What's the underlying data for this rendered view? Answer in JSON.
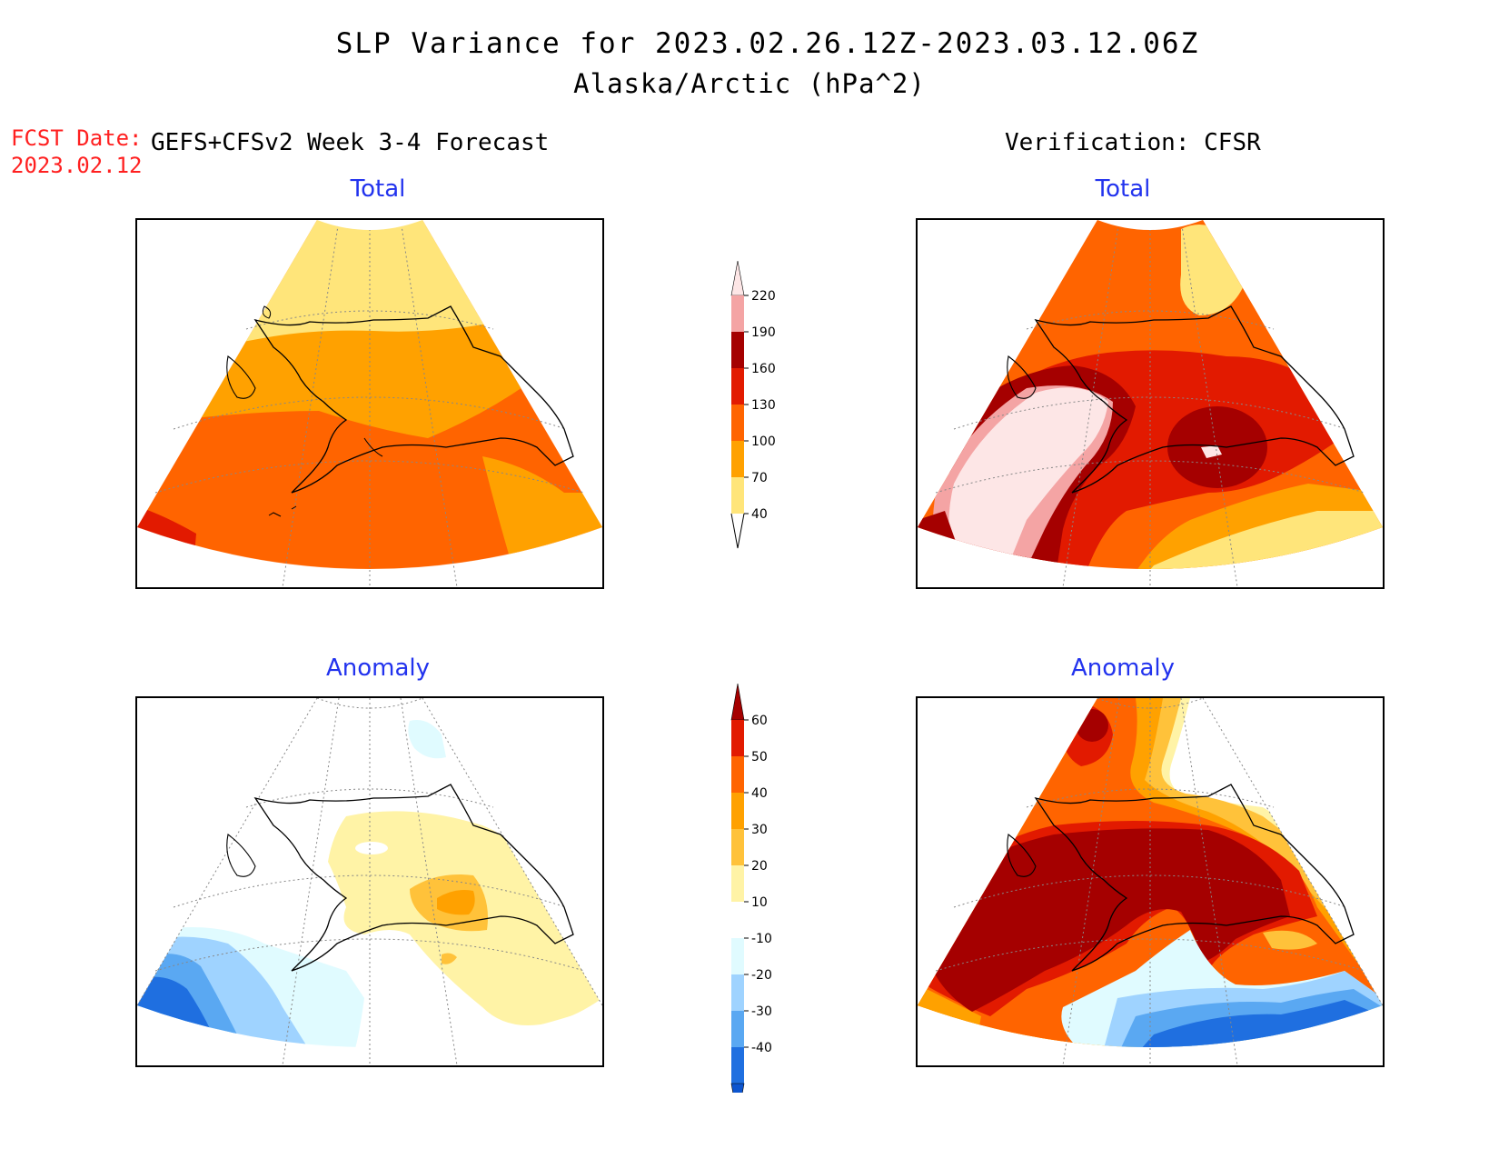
{
  "header": {
    "title_line1": "SLP Variance for 2023.02.26.12Z-2023.03.12.06Z",
    "title_line2": "Alaska/Arctic (hPa^2)",
    "fcst_label": "FCST Date:",
    "fcst_date": "2023.02.12",
    "forecast_model": "GEFS+CFSv2 Week 3-4 Forecast",
    "verification": "Verification: CFSR"
  },
  "panels": [
    {
      "id": "fcst-total",
      "title": "Total"
    },
    {
      "id": "verif-total",
      "title": "Total"
    },
    {
      "id": "fcst-anomaly",
      "title": "Anomaly"
    },
    {
      "id": "verif-anomaly",
      "title": "Anomaly"
    }
  ],
  "colorbars": {
    "total": {
      "levels": [
        "220",
        "190",
        "160",
        "130",
        "100",
        "70",
        "40"
      ],
      "colors": [
        "#f4a4a4",
        "#a50000",
        "#e21a00",
        "#ff6400",
        "#ffa100",
        "#ffe57a"
      ],
      "over_color": "#fde6e6"
    },
    "anomaly": {
      "levels": [
        "60",
        "50",
        "40",
        "30",
        "20",
        "10",
        "-10",
        "-20",
        "-30",
        "-40"
      ],
      "colors": [
        "#e21a00",
        "#ff6400",
        "#ffa100",
        "#ffc23a",
        "#fff3a6",
        "#ffffff",
        "#e0fbff",
        "#9fd3ff",
        "#5aa8f2",
        "#1f6fe0"
      ],
      "over_color": "#a50000",
      "under_color": "#0d55cf"
    }
  }
}
